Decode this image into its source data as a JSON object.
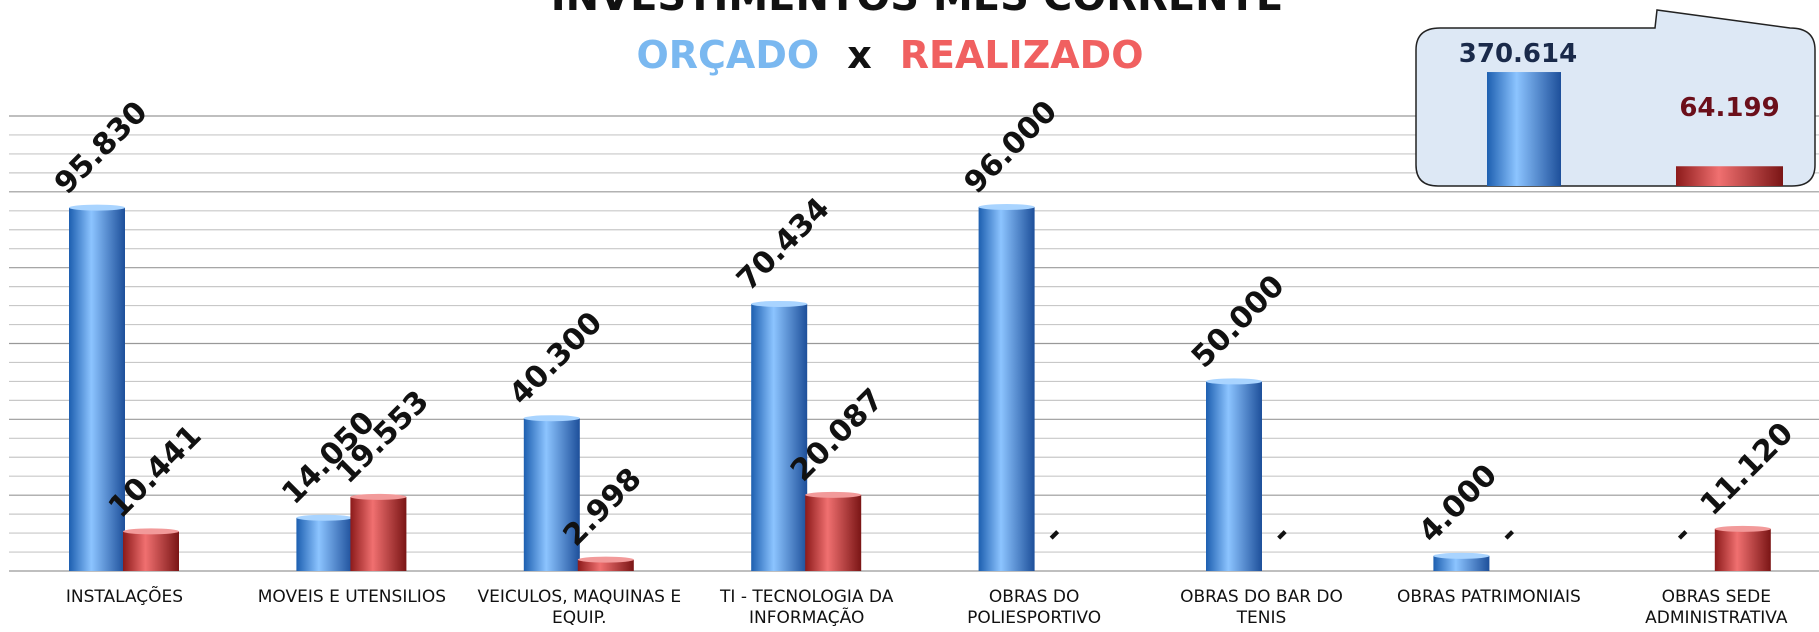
{
  "chart_data": [
    {
      "type": "bar",
      "title": "INVESTIMENTOS MÊS CORRENTE",
      "legend_separator": "x",
      "categories": [
        "INSTALAÇÕES",
        "MOVEIS E UTENSILIOS",
        "VEICULOS, MAQUINAS E EQUIP.",
        "TI - TECNOLOGIA DA INFORMAÇÃO",
        "OBRAS DO POLIESPORTIVO",
        "OBRAS DO BAR DO TENIS",
        "OBRAS PATRIMONIAIS",
        "OBRAS SEDE ADMINISTRATIVA"
      ],
      "series": [
        {
          "name": "ORÇADO",
          "color": "#4a90e0",
          "legend_color": "#7ab8f0",
          "values": [
            95830,
            14050,
            40300,
            70434,
            96000,
            50000,
            4000,
            null
          ],
          "value_labels": [
            "95.830",
            "14.050",
            "40.300",
            "70.434",
            "96.000",
            "50.000",
            "4.000",
            "-"
          ]
        },
        {
          "name": "REALIZADO",
          "color": "#d03a3a",
          "legend_color": "#f06060",
          "values": [
            10441,
            19553,
            2998,
            20087,
            null,
            null,
            null,
            11120
          ],
          "value_labels": [
            "10.441",
            "19.553",
            "2.998",
            "20.087",
            "-",
            "-",
            "-",
            "11.120"
          ]
        }
      ],
      "ylim": [
        0,
        120000
      ],
      "yticks": [
        0,
        5000,
        10000,
        15000,
        20000,
        25000,
        30000,
        35000,
        40000,
        45000,
        50000,
        55000,
        60000,
        65000,
        70000,
        75000,
        80000,
        85000,
        90000,
        95000,
        100000,
        105000,
        110000,
        115000,
        120000
      ],
      "grid": true
    },
    {
      "type": "bar",
      "series": [
        {
          "name": "ORÇADO",
          "color": "#4a90e0",
          "label_color": "#1a2a4a",
          "values": [
            370614
          ],
          "value_labels": [
            "370.614"
          ]
        },
        {
          "name": "REALIZADO",
          "color": "#d03a3a",
          "label_color": "#6b0f1a",
          "values": [
            64199
          ],
          "value_labels": [
            "64.199"
          ]
        }
      ],
      "ylim": [
        0,
        400000
      ]
    }
  ]
}
